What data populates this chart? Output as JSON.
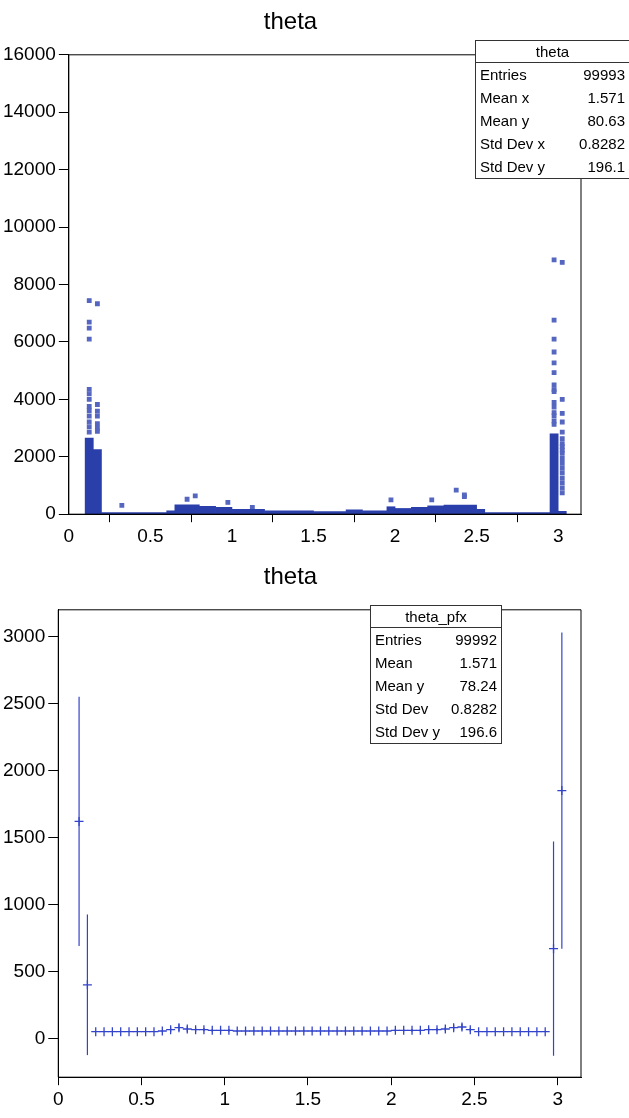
{
  "chart_data": [
    {
      "type": "histogram",
      "title": "theta",
      "marker": "square",
      "xlim": [
        0,
        3.14
      ],
      "xticks": [
        0,
        0.5,
        1,
        1.5,
        2,
        2.5,
        3
      ],
      "ylim": [
        0,
        16000
      ],
      "yticks": [
        0,
        2000,
        4000,
        6000,
        8000,
        10000,
        12000,
        14000,
        16000
      ],
      "annotations": [
        "theta",
        "Entries 99993",
        "Mean x 1.571",
        "Mean y 80.63",
        "Std Dev x 0.8282",
        "Std Dev y 196.1"
      ],
      "series": [
        {
          "color": "#2a3faa",
          "bins": [
            0.1,
            0.15,
            0.2,
            0.6,
            0.65,
            0.8,
            0.9,
            1.0,
            1.2,
            1.5,
            1.7,
            1.8,
            1.95,
            2.0,
            2.1,
            2.2,
            2.3,
            2.5,
            2.55,
            2.95,
            3.0,
            3.05
          ],
          "values": [
            2650,
            2250,
            60,
            120,
            330,
            270,
            240,
            170,
            120,
            90,
            150,
            120,
            260,
            200,
            240,
            290,
            320,
            170,
            60,
            2800,
            100
          ]
        },
        {
          "type": "scatter",
          "color": "#5566c0",
          "x": [
            0.125,
            0.125,
            0.125,
            0.125,
            0.125,
            0.125,
            0.125,
            0.125,
            0.125,
            0.125,
            0.125,
            0.125,
            0.125,
            0.175,
            0.175,
            0.175,
            0.175,
            0.175,
            0.175,
            0.175,
            0.325,
            0.725,
            0.775,
            0.975,
            1.125,
            1.975,
            2.225,
            2.375,
            2.425,
            2.425,
            2.975,
            2.975,
            2.975,
            2.975,
            2.975,
            2.975,
            2.975,
            2.975,
            2.975,
            2.975,
            2.975,
            2.975,
            2.975,
            2.975,
            2.975,
            3.025,
            3.025,
            3.025,
            3.025,
            3.025,
            3.025,
            3.025,
            3.025,
            3.025,
            3.025,
            3.025,
            3.025,
            3.025,
            3.025,
            3.025,
            3.025,
            3.025,
            3.025
          ],
          "values": [
            7440,
            6690,
            6480,
            6100,
            4350,
            4190,
            4000,
            3750,
            3610,
            3420,
            3210,
            3040,
            2860,
            7330,
            3820,
            3590,
            3420,
            3150,
            3000,
            2890,
            310,
            520,
            640,
            410,
            240,
            500,
            500,
            840,
            670,
            610,
            8860,
            6760,
            6100,
            5650,
            5270,
            4930,
            4500,
            4340,
            4270,
            3890,
            3730,
            3540,
            3420,
            3240,
            3130,
            8770,
            4000,
            3510,
            3210,
            2860,
            2630,
            2460,
            2350,
            2230,
            2120,
            1940,
            1770,
            1600,
            1430,
            1250,
            1080,
            910,
            740
          ]
        }
      ]
    },
    {
      "type": "scatter",
      "title": "theta",
      "xlim": [
        0,
        3.14
      ],
      "xticks": [
        0,
        0.5,
        1,
        1.5,
        2,
        2.5,
        3
      ],
      "ylim": [
        -290,
        3200
      ],
      "yticks": [
        0,
        500,
        1000,
        1500,
        2000,
        2500,
        3000
      ],
      "marker": "cross",
      "annotations": [
        "theta_pfx",
        "Entries 99992",
        "Mean 1.571",
        "Mean y 78.24",
        "Std Dev 0.8282",
        "Std Dev y 196.6"
      ],
      "series": [
        {
          "color": "#3344cc",
          "x": [
            0.125,
            0.175,
            0.225,
            0.275,
            0.325,
            0.375,
            0.425,
            0.475,
            0.525,
            0.575,
            0.625,
            0.675,
            0.725,
            0.775,
            0.825,
            0.875,
            0.925,
            0.975,
            1.025,
            1.075,
            1.125,
            1.175,
            1.225,
            1.275,
            1.325,
            1.375,
            1.425,
            1.475,
            1.525,
            1.575,
            1.625,
            1.675,
            1.725,
            1.775,
            1.825,
            1.875,
            1.925,
            1.975,
            2.025,
            2.075,
            2.125,
            2.175,
            2.225,
            2.275,
            2.325,
            2.375,
            2.425,
            2.475,
            2.525,
            2.575,
            2.625,
            2.675,
            2.725,
            2.775,
            2.825,
            2.875,
            2.925,
            2.975,
            3.025
          ],
          "values": [
            1620,
            400,
            50,
            50,
            50,
            50,
            50,
            50,
            50,
            50,
            55,
            65,
            80,
            70,
            65,
            65,
            60,
            60,
            60,
            55,
            55,
            55,
            55,
            55,
            55,
            55,
            55,
            55,
            55,
            55,
            55,
            55,
            55,
            55,
            55,
            55,
            55,
            55,
            60,
            60,
            60,
            60,
            65,
            65,
            70,
            80,
            85,
            65,
            50,
            50,
            50,
            50,
            50,
            50,
            50,
            50,
            50,
            670,
            1850
          ],
          "errors": [
            930,
            525,
            3,
            3,
            3,
            3,
            3,
            3,
            3,
            3,
            8,
            18,
            25,
            20,
            15,
            12,
            10,
            10,
            10,
            8,
            6,
            6,
            6,
            6,
            6,
            6,
            6,
            6,
            6,
            6,
            6,
            6,
            6,
            6,
            6,
            6,
            6,
            6,
            8,
            8,
            10,
            10,
            12,
            12,
            15,
            22,
            25,
            15,
            3,
            2,
            2,
            2,
            2,
            2,
            2,
            2,
            2,
            800,
            1180
          ]
        }
      ]
    }
  ]
}
